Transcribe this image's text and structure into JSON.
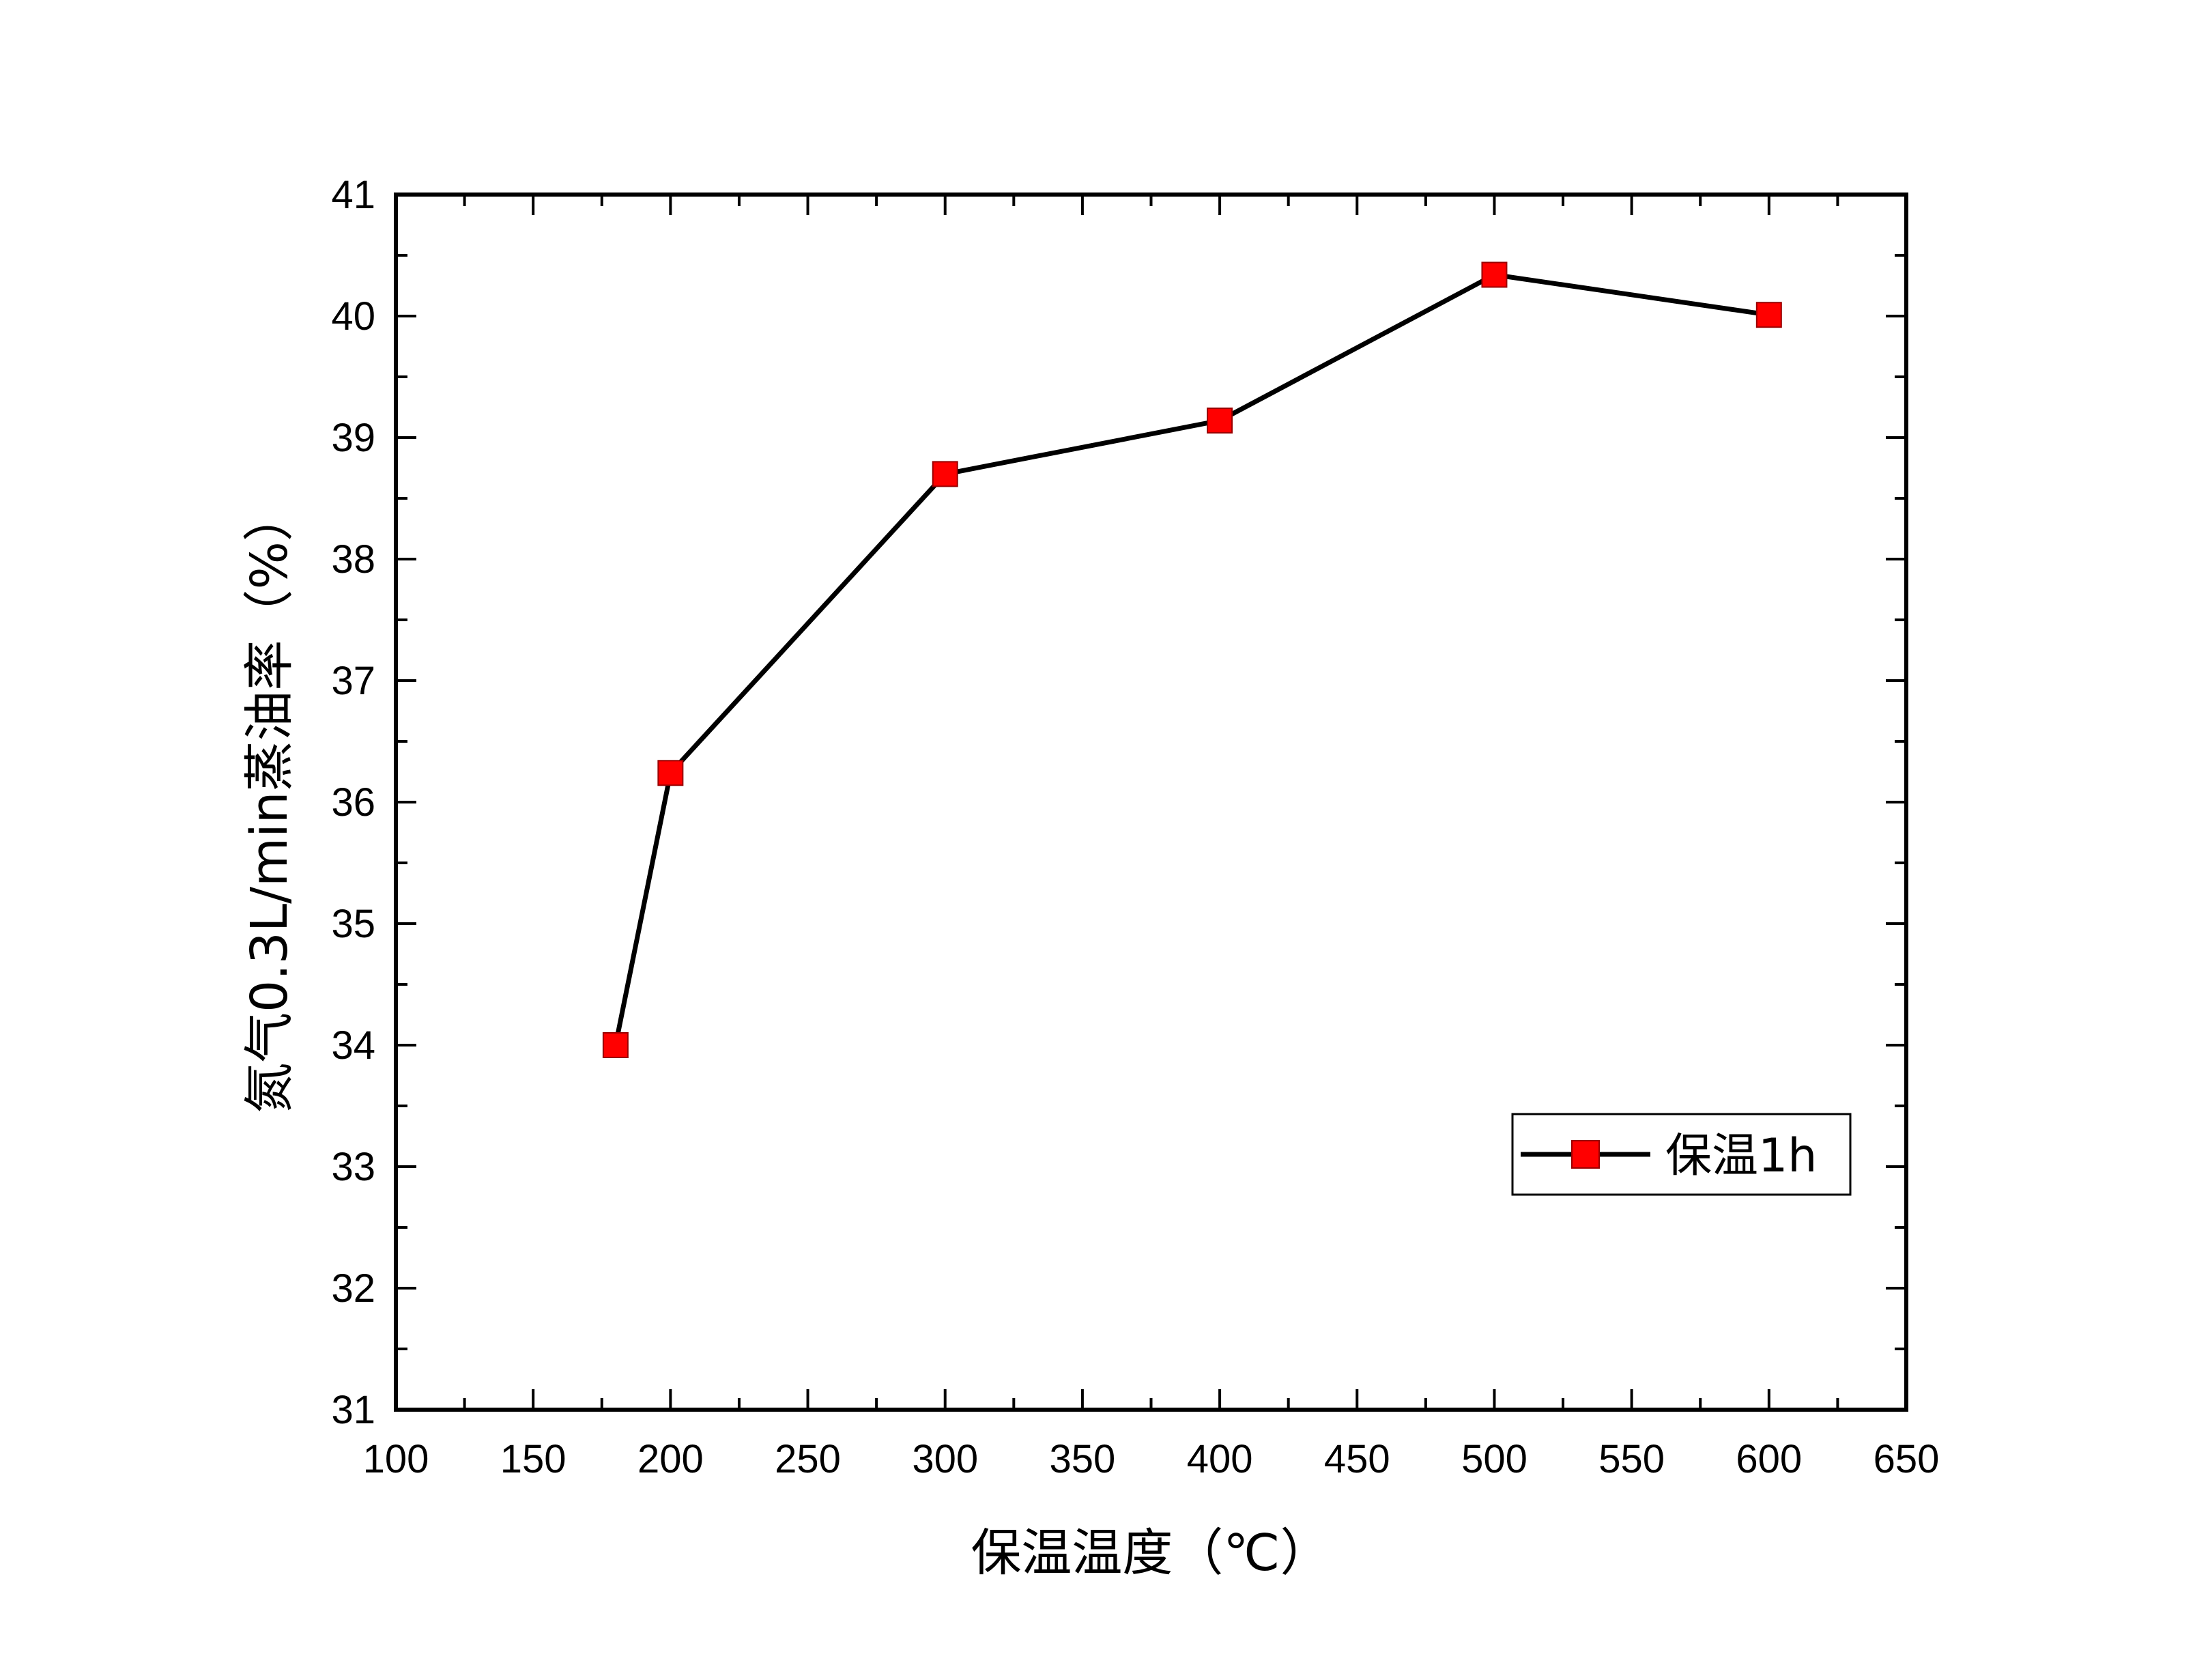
{
  "chart_data": {
    "type": "line",
    "title": "",
    "xlabel": "保温温度（℃）",
    "ylabel": "氮气0.3L/min蒸油率（%）",
    "xlim": [
      100,
      650
    ],
    "ylim": [
      31,
      41
    ],
    "x_ticks": [
      100,
      150,
      200,
      250,
      300,
      350,
      400,
      450,
      500,
      550,
      600,
      650
    ],
    "y_ticks": [
      31,
      32,
      33,
      34,
      35,
      36,
      37,
      38,
      39,
      40,
      41
    ],
    "x_tick_labels": [
      "100",
      "150",
      "200",
      "250",
      "300",
      "350",
      "400",
      "450",
      "500",
      "550",
      "600",
      "650"
    ],
    "y_tick_labels": [
      "31",
      "32",
      "33",
      "34",
      "35",
      "36",
      "37",
      "38",
      "39",
      "40",
      "41"
    ],
    "grid": false,
    "legend": {
      "position": "bottom-right",
      "entries": [
        "保温1h"
      ]
    },
    "series": [
      {
        "name": "保温1h",
        "marker": "square",
        "line_color": "#000000",
        "marker_color": "#ff0000",
        "x": [
          180,
          200,
          300,
          400,
          500,
          600
        ],
        "y": [
          34.0,
          36.24,
          38.7,
          39.14,
          40.34,
          40.01
        ]
      }
    ]
  }
}
